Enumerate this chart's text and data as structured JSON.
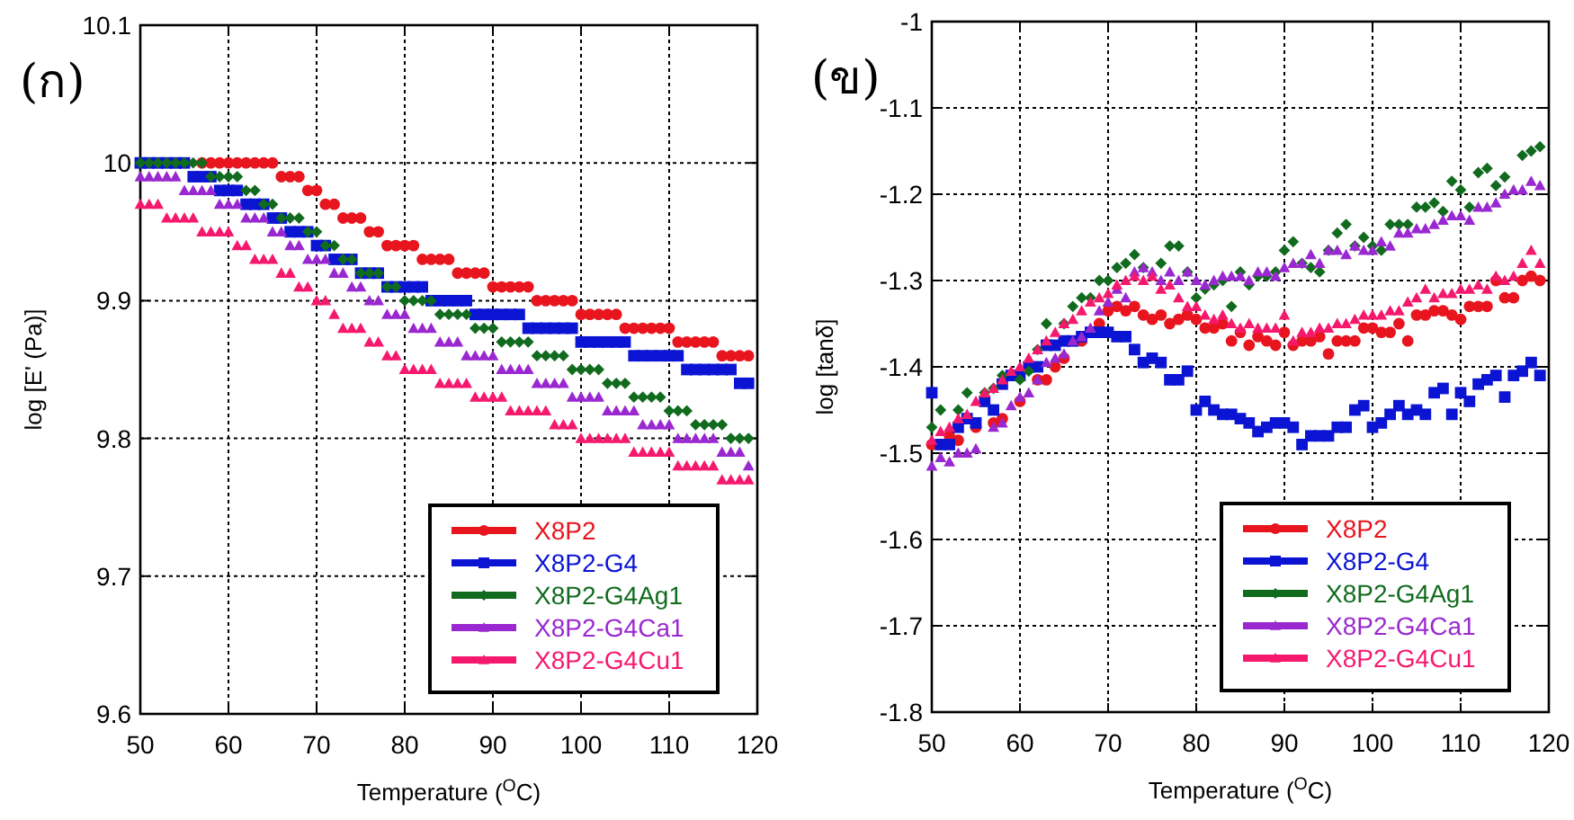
{
  "chart_data": [
    {
      "type": "scatter",
      "title": "(ก)",
      "xlabel": "Temperature ($^{O}$C)",
      "ylabel": "log [E' (Pa)]",
      "xlim": [
        50,
        120
      ],
      "xticks": [
        50,
        60,
        70,
        80,
        90,
        100,
        110,
        120
      ],
      "ylim": [
        9.6,
        10.1
      ],
      "yticks": [
        9.6,
        9.7,
        9.8,
        9.9,
        10,
        10.1
      ],
      "grid": true,
      "legend": "bottom right",
      "series": [
        {
          "name": "X8P2",
          "color": "#e8141e",
          "marker": "circle",
          "x": [
            57,
            58,
            59,
            60,
            61,
            62,
            63,
            64,
            65,
            66,
            67,
            68,
            69,
            70,
            71,
            72,
            73,
            74,
            75,
            76,
            77,
            78,
            79,
            80,
            81,
            82,
            83,
            84,
            85,
            86,
            87,
            88,
            89,
            90,
            91,
            92,
            93,
            94,
            95,
            96,
            97,
            98,
            99,
            100,
            101,
            102,
            103,
            104,
            105,
            106,
            107,
            108,
            109,
            110,
            111,
            112,
            113,
            114,
            115,
            116,
            117,
            118,
            119
          ],
          "values": [
            10,
            10,
            10,
            10,
            10,
            10,
            10,
            10,
            10,
            9.99,
            9.99,
            9.99,
            9.98,
            9.98,
            9.97,
            9.97,
            9.96,
            9.96,
            9.96,
            9.95,
            9.95,
            9.94,
            9.94,
            9.94,
            9.94,
            9.93,
            9.93,
            9.93,
            9.93,
            9.92,
            9.92,
            9.92,
            9.92,
            9.91,
            9.91,
            9.91,
            9.91,
            9.91,
            9.9,
            9.9,
            9.9,
            9.9,
            9.9,
            9.89,
            9.89,
            9.89,
            9.89,
            9.89,
            9.88,
            9.88,
            9.88,
            9.88,
            9.88,
            9.88,
            9.87,
            9.87,
            9.87,
            9.87,
            9.87,
            9.86,
            9.86,
            9.86,
            9.86
          ]
        },
        {
          "name": "X8P2-G4",
          "color": "#0a14d2",
          "marker": "square",
          "x": [
            50,
            51,
            52,
            53,
            54,
            55,
            56,
            57,
            58,
            59,
            60,
            61,
            62,
            63,
            64,
            65,
            66,
            67,
            68,
            69,
            70,
            71,
            72,
            73,
            74,
            75,
            76,
            77,
            78,
            79,
            80,
            81,
            82,
            83,
            84,
            85,
            86,
            87,
            88,
            89,
            90,
            91,
            92,
            93,
            94,
            95,
            96,
            97,
            98,
            99,
            100,
            101,
            102,
            103,
            104,
            105,
            106,
            107,
            108,
            109,
            110,
            111,
            112,
            113,
            114,
            115,
            116,
            117,
            118,
            119
          ],
          "values": [
            10,
            10,
            10,
            10,
            10,
            10,
            9.99,
            9.99,
            9.99,
            9.98,
            9.98,
            9.98,
            9.97,
            9.97,
            9.97,
            9.96,
            9.96,
            9.95,
            9.95,
            9.95,
            9.94,
            9.94,
            9.93,
            9.93,
            9.93,
            9.92,
            9.92,
            9.92,
            9.91,
            9.91,
            9.91,
            9.91,
            9.91,
            9.9,
            9.9,
            9.9,
            9.9,
            9.9,
            9.89,
            9.89,
            9.89,
            9.89,
            9.89,
            9.89,
            9.88,
            9.88,
            9.88,
            9.88,
            9.88,
            9.88,
            9.87,
            9.87,
            9.87,
            9.87,
            9.87,
            9.87,
            9.86,
            9.86,
            9.86,
            9.86,
            9.86,
            9.86,
            9.85,
            9.85,
            9.85,
            9.85,
            9.85,
            9.85,
            9.84,
            9.84
          ]
        },
        {
          "name": "X8P2-G4Ag1",
          "color": "#116b1e",
          "marker": "diamond",
          "x": [
            50,
            51,
            52,
            53,
            54,
            55,
            56,
            57,
            58,
            59,
            60,
            61,
            62,
            63,
            64,
            65,
            66,
            67,
            68,
            69,
            70,
            71,
            72,
            73,
            74,
            75,
            76,
            77,
            78,
            79,
            80,
            81,
            82,
            83,
            84,
            85,
            86,
            87,
            88,
            89,
            90,
            91,
            92,
            93,
            94,
            95,
            96,
            97,
            98,
            99,
            100,
            101,
            102,
            103,
            104,
            105,
            106,
            107,
            108,
            109,
            110,
            111,
            112,
            113,
            114,
            115,
            116,
            117,
            118,
            119
          ],
          "values": [
            10,
            10,
            10,
            10,
            10,
            10,
            10,
            10,
            9.99,
            9.99,
            9.99,
            9.99,
            9.98,
            9.98,
            9.97,
            9.97,
            9.96,
            9.96,
            9.96,
            9.95,
            9.95,
            9.94,
            9.94,
            9.93,
            9.93,
            9.92,
            9.92,
            9.92,
            9.91,
            9.91,
            9.9,
            9.9,
            9.9,
            9.9,
            9.89,
            9.89,
            9.89,
            9.89,
            9.88,
            9.88,
            9.88,
            9.87,
            9.87,
            9.87,
            9.87,
            9.86,
            9.86,
            9.86,
            9.86,
            9.85,
            9.85,
            9.85,
            9.85,
            9.84,
            9.84,
            9.84,
            9.83,
            9.83,
            9.83,
            9.83,
            9.82,
            9.82,
            9.82,
            9.81,
            9.81,
            9.81,
            9.81,
            9.8,
            9.8,
            9.8
          ]
        },
        {
          "name": "X8P2-G4Ca1",
          "color": "#9a28d0",
          "marker": "triangle",
          "x": [
            50,
            51,
            52,
            53,
            54,
            55,
            56,
            57,
            58,
            59,
            60,
            61,
            62,
            63,
            64,
            65,
            66,
            67,
            68,
            69,
            70,
            71,
            72,
            73,
            74,
            75,
            76,
            77,
            78,
            79,
            80,
            81,
            82,
            83,
            84,
            85,
            86,
            87,
            88,
            89,
            90,
            91,
            92,
            93,
            94,
            95,
            96,
            97,
            98,
            99,
            100,
            101,
            102,
            103,
            104,
            105,
            106,
            107,
            108,
            109,
            110,
            111,
            112,
            113,
            114,
            115,
            116,
            117,
            118,
            119
          ],
          "values": [
            9.99,
            9.99,
            9.99,
            9.99,
            9.99,
            9.98,
            9.98,
            9.98,
            9.98,
            9.97,
            9.97,
            9.97,
            9.96,
            9.96,
            9.96,
            9.95,
            9.95,
            9.94,
            9.94,
            9.93,
            9.93,
            9.93,
            9.92,
            9.92,
            9.91,
            9.91,
            9.9,
            9.9,
            9.89,
            9.89,
            9.89,
            9.88,
            9.88,
            9.88,
            9.87,
            9.87,
            9.87,
            9.86,
            9.86,
            9.86,
            9.86,
            9.85,
            9.85,
            9.85,
            9.85,
            9.84,
            9.84,
            9.84,
            9.84,
            9.83,
            9.83,
            9.83,
            9.83,
            9.82,
            9.82,
            9.82,
            9.82,
            9.81,
            9.81,
            9.81,
            9.81,
            9.8,
            9.8,
            9.8,
            9.8,
            9.8,
            9.79,
            9.79,
            9.79,
            9.78
          ]
        },
        {
          "name": "X8P2-G4Cu1",
          "color": "#f5196e",
          "marker": "triangle",
          "x": [
            50,
            51,
            52,
            53,
            54,
            55,
            56,
            57,
            58,
            59,
            60,
            61,
            62,
            63,
            64,
            65,
            66,
            67,
            68,
            69,
            70,
            71,
            72,
            73,
            74,
            75,
            76,
            77,
            78,
            79,
            80,
            81,
            82,
            83,
            84,
            85,
            86,
            87,
            88,
            89,
            90,
            91,
            92,
            93,
            94,
            95,
            96,
            97,
            98,
            99,
            100,
            101,
            102,
            103,
            104,
            105,
            106,
            107,
            108,
            109,
            110,
            111,
            112,
            113,
            114,
            115,
            116,
            117,
            118,
            119
          ],
          "values": [
            9.97,
            9.97,
            9.97,
            9.96,
            9.96,
            9.96,
            9.96,
            9.95,
            9.95,
            9.95,
            9.95,
            9.94,
            9.94,
            9.93,
            9.93,
            9.93,
            9.92,
            9.92,
            9.91,
            9.91,
            9.9,
            9.9,
            9.89,
            9.88,
            9.88,
            9.88,
            9.87,
            9.87,
            9.86,
            9.86,
            9.85,
            9.85,
            9.85,
            9.85,
            9.84,
            9.84,
            9.84,
            9.84,
            9.83,
            9.83,
            9.83,
            9.83,
            9.82,
            9.82,
            9.82,
            9.82,
            9.82,
            9.81,
            9.81,
            9.81,
            9.8,
            9.8,
            9.8,
            9.8,
            9.8,
            9.8,
            9.79,
            9.79,
            9.79,
            9.79,
            9.79,
            9.78,
            9.78,
            9.78,
            9.78,
            9.78,
            9.77,
            9.77,
            9.77,
            9.77
          ]
        }
      ]
    },
    {
      "type": "scatter",
      "title": "(ข)",
      "xlabel": "Temperature ($^{O}$C)",
      "ylabel": "log [tanδ]",
      "xlim": [
        50,
        120
      ],
      "xticks": [
        50,
        60,
        70,
        80,
        90,
        100,
        110,
        120
      ],
      "ylim": [
        -1.8,
        -1
      ],
      "yticks": [
        -1.8,
        -1.7,
        -1.6,
        -1.5,
        -1.4,
        -1.3,
        -1.2,
        -1.1,
        -1
      ],
      "grid": true,
      "legend": "bottom right",
      "series": [
        {
          "name": "X8P2",
          "color": "#e8141e",
          "marker": "circle",
          "x": [
            50,
            52,
            53,
            55,
            57,
            58,
            60,
            62,
            63,
            64,
            65,
            67,
            69,
            70,
            71,
            72,
            73,
            74,
            75,
            76,
            77,
            78,
            79,
            80,
            81,
            82,
            83,
            84,
            85,
            86,
            87,
            88,
            89,
            90,
            91,
            92,
            93,
            94,
            95,
            96,
            97,
            98,
            99,
            100,
            101,
            102,
            103,
            104,
            105,
            106,
            107,
            108,
            109,
            110,
            111,
            112,
            113,
            114,
            115,
            116,
            117,
            118,
            119
          ],
          "values": [
            -1.49,
            -1.48,
            -1.485,
            -1.47,
            -1.465,
            -1.46,
            -1.44,
            -1.415,
            -1.415,
            -1.4,
            -1.39,
            -1.37,
            -1.35,
            -1.335,
            -1.33,
            -1.335,
            -1.33,
            -1.34,
            -1.345,
            -1.34,
            -1.35,
            -1.345,
            -1.34,
            -1.345,
            -1.355,
            -1.355,
            -1.35,
            -1.37,
            -1.36,
            -1.375,
            -1.365,
            -1.37,
            -1.375,
            -1.36,
            -1.375,
            -1.37,
            -1.37,
            -1.365,
            -1.385,
            -1.37,
            -1.37,
            -1.37,
            -1.355,
            -1.355,
            -1.36,
            -1.36,
            -1.35,
            -1.37,
            -1.34,
            -1.34,
            -1.335,
            -1.335,
            -1.34,
            -1.345,
            -1.33,
            -1.33,
            -1.33,
            -1.3,
            -1.32,
            -1.32,
            -1.3,
            -1.295,
            -1.3
          ]
        },
        {
          "name": "X8P2-G4",
          "color": "#0a14d2",
          "marker": "square",
          "x": [
            50,
            51,
            52,
            53,
            54,
            55,
            56,
            57,
            58,
            59,
            60,
            61,
            62,
            63,
            64,
            65,
            66,
            67,
            68,
            69,
            70,
            71,
            72,
            73,
            74,
            75,
            76,
            77,
            78,
            79,
            80,
            81,
            82,
            83,
            84,
            85,
            86,
            87,
            88,
            89,
            90,
            91,
            92,
            93,
            94,
            95,
            96,
            97,
            98,
            99,
            100,
            101,
            102,
            103,
            104,
            105,
            106,
            107,
            108,
            109,
            110,
            111,
            112,
            113,
            114,
            115,
            116,
            117,
            118,
            119
          ],
          "values": [
            -1.43,
            -1.49,
            -1.49,
            -1.47,
            -1.46,
            -1.465,
            -1.44,
            -1.45,
            -1.42,
            -1.41,
            -1.41,
            -1.4,
            -1.4,
            -1.375,
            -1.375,
            -1.37,
            -1.37,
            -1.365,
            -1.36,
            -1.36,
            -1.36,
            -1.365,
            -1.365,
            -1.38,
            -1.395,
            -1.39,
            -1.395,
            -1.415,
            -1.415,
            -1.405,
            -1.45,
            -1.44,
            -1.45,
            -1.455,
            -1.455,
            -1.46,
            -1.465,
            -1.475,
            -1.47,
            -1.465,
            -1.465,
            -1.47,
            -1.49,
            -1.48,
            -1.48,
            -1.48,
            -1.47,
            -1.47,
            -1.45,
            -1.445,
            -1.47,
            -1.465,
            -1.455,
            -1.445,
            -1.455,
            -1.45,
            -1.455,
            -1.43,
            -1.425,
            -1.455,
            -1.43,
            -1.44,
            -1.42,
            -1.415,
            -1.41,
            -1.435,
            -1.41,
            -1.405,
            -1.395,
            -1.41
          ]
        },
        {
          "name": "X8P2-G4Ag1",
          "color": "#116b1e",
          "marker": "diamond",
          "x": [
            50,
            51,
            53,
            54,
            56,
            57,
            58,
            60,
            61,
            62,
            63,
            65,
            66,
            67,
            68,
            69,
            70,
            71,
            72,
            73,
            74,
            76,
            77,
            78,
            79,
            80,
            81,
            82,
            83,
            84,
            85,
            86,
            87,
            88,
            89,
            90,
            91,
            92,
            93,
            94,
            95,
            96,
            97,
            98,
            99,
            100,
            101,
            102,
            103,
            104,
            105,
            106,
            107,
            108,
            109,
            110,
            111,
            112,
            113,
            114,
            115,
            117,
            118,
            119
          ],
          "values": [
            -1.47,
            -1.45,
            -1.45,
            -1.43,
            -1.43,
            -1.425,
            -1.41,
            -1.415,
            -1.405,
            -1.38,
            -1.35,
            -1.35,
            -1.33,
            -1.32,
            -1.32,
            -1.3,
            -1.3,
            -1.285,
            -1.28,
            -1.27,
            -1.285,
            -1.28,
            -1.26,
            -1.26,
            -1.29,
            -1.32,
            -1.31,
            -1.305,
            -1.3,
            -1.33,
            -1.29,
            -1.305,
            -1.295,
            -1.295,
            -1.29,
            -1.265,
            -1.255,
            -1.28,
            -1.285,
            -1.29,
            -1.265,
            -1.245,
            -1.235,
            -1.26,
            -1.25,
            -1.26,
            -1.265,
            -1.235,
            -1.235,
            -1.235,
            -1.215,
            -1.215,
            -1.21,
            -1.22,
            -1.185,
            -1.195,
            -1.215,
            -1.175,
            -1.17,
            -1.19,
            -1.18,
            -1.155,
            -1.15,
            -1.145
          ]
        },
        {
          "name": "X8P2-G4Ca1",
          "color": "#9a28d0",
          "marker": "triangle",
          "x": [
            50,
            51,
            52,
            53,
            54,
            55,
            57,
            58,
            59,
            60,
            61,
            62,
            63,
            64,
            65,
            66,
            67,
            68,
            69,
            70,
            71,
            72,
            73,
            74,
            75,
            76,
            77,
            78,
            79,
            80,
            81,
            82,
            83,
            84,
            85,
            86,
            87,
            88,
            89,
            90,
            91,
            92,
            93,
            94,
            95,
            96,
            97,
            98,
            99,
            100,
            101,
            102,
            103,
            104,
            105,
            106,
            107,
            108,
            109,
            110,
            111,
            112,
            113,
            114,
            115,
            116,
            117,
            118,
            119
          ],
          "values": [
            -1.515,
            -1.505,
            -1.51,
            -1.5,
            -1.5,
            -1.495,
            -1.47,
            -1.465,
            -1.445,
            -1.435,
            -1.43,
            -1.415,
            -1.395,
            -1.39,
            -1.385,
            -1.37,
            -1.365,
            -1.355,
            -1.335,
            -1.325,
            -1.31,
            -1.32,
            -1.29,
            -1.285,
            -1.29,
            -1.3,
            -1.29,
            -1.3,
            -1.29,
            -1.3,
            -1.305,
            -1.3,
            -1.295,
            -1.295,
            -1.295,
            -1.3,
            -1.29,
            -1.29,
            -1.295,
            -1.285,
            -1.28,
            -1.28,
            -1.27,
            -1.28,
            -1.265,
            -1.265,
            -1.27,
            -1.26,
            -1.265,
            -1.265,
            -1.255,
            -1.26,
            -1.245,
            -1.245,
            -1.24,
            -1.24,
            -1.235,
            -1.23,
            -1.225,
            -1.225,
            -1.23,
            -1.215,
            -1.215,
            -1.21,
            -1.2,
            -1.195,
            -1.195,
            -1.185,
            -1.19
          ]
        },
        {
          "name": "X8P2-G4Cu1",
          "color": "#f5196e",
          "marker": "triangle",
          "x": [
            50,
            51,
            52,
            53,
            54,
            55,
            56,
            57,
            58,
            59,
            60,
            61,
            62,
            63,
            64,
            65,
            66,
            67,
            68,
            69,
            70,
            71,
            72,
            73,
            74,
            75,
            76,
            77,
            78,
            79,
            80,
            81,
            82,
            83,
            84,
            85,
            86,
            87,
            88,
            89,
            90,
            91,
            92,
            93,
            94,
            95,
            96,
            97,
            98,
            99,
            100,
            101,
            102,
            103,
            104,
            105,
            106,
            107,
            108,
            109,
            110,
            111,
            112,
            113,
            114,
            115,
            116,
            117,
            118,
            119
          ],
          "values": [
            -1.485,
            -1.475,
            -1.47,
            -1.46,
            -1.455,
            -1.44,
            -1.43,
            -1.425,
            -1.415,
            -1.405,
            -1.4,
            -1.39,
            -1.38,
            -1.37,
            -1.36,
            -1.35,
            -1.345,
            -1.335,
            -1.325,
            -1.32,
            -1.315,
            -1.305,
            -1.3,
            -1.295,
            -1.3,
            -1.295,
            -1.31,
            -1.305,
            -1.32,
            -1.33,
            -1.33,
            -1.34,
            -1.345,
            -1.34,
            -1.35,
            -1.355,
            -1.35,
            -1.355,
            -1.355,
            -1.355,
            -1.34,
            -1.37,
            -1.36,
            -1.36,
            -1.355,
            -1.355,
            -1.35,
            -1.35,
            -1.345,
            -1.34,
            -1.34,
            -1.34,
            -1.335,
            -1.335,
            -1.325,
            -1.32,
            -1.31,
            -1.32,
            -1.315,
            -1.315,
            -1.31,
            -1.31,
            -1.305,
            -1.31,
            -1.295,
            -1.3,
            -1.295,
            -1.28,
            -1.265,
            -1.28
          ]
        }
      ]
    }
  ]
}
